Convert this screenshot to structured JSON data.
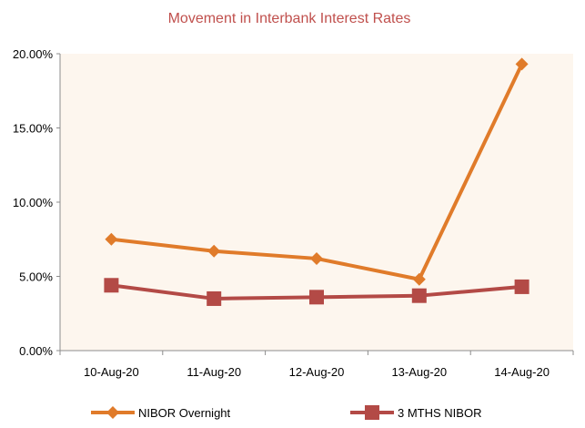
{
  "chart_data": {
    "type": "line",
    "title": "Movement in Interbank Interest Rates",
    "xlabel": "",
    "ylabel": "",
    "categories": [
      "10-Aug-20",
      "11-Aug-20",
      "12-Aug-20",
      "13-Aug-20",
      "14-Aug-20"
    ],
    "y_ticks": [
      "0.00%",
      "5.00%",
      "10.00%",
      "15.00%",
      "20.00%"
    ],
    "ylim": [
      0,
      20
    ],
    "series": [
      {
        "name": "NIBOR Overnight",
        "values": [
          7.5,
          6.7,
          6.2,
          4.8,
          19.3
        ],
        "marker": "diamond",
        "color": "#e07b2a"
      },
      {
        "name": "3 MTHS NIBOR",
        "values": [
          4.4,
          3.5,
          3.6,
          3.7,
          4.3
        ],
        "marker": "square",
        "color": "#b34a46"
      }
    ],
    "grid": false,
    "legend_position": "bottom",
    "colors": {
      "title": "#c0504d",
      "plot_background": "#fdf6ee",
      "axis": "#8c8c8c"
    }
  }
}
